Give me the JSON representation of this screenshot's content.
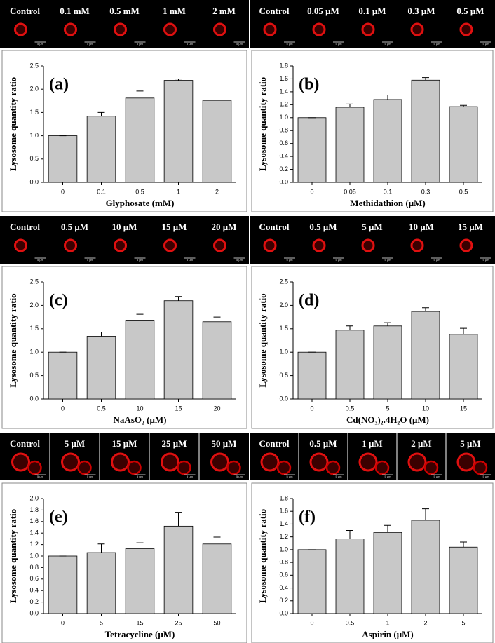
{
  "chart_data": [
    {
      "type": "bar",
      "panel_label": "(a)",
      "strip_labels": [
        "Control",
        "0.1 mM",
        "0.5 mM",
        "1 mM",
        "2 mM"
      ],
      "scale_bar_label": "5 μm",
      "x_label": "Glyphosate (mM)",
      "y_label": "Lysosome quantity ratio",
      "categories": [
        "0",
        "0.1",
        "0.5",
        "1",
        "2"
      ],
      "values": [
        1.0,
        1.42,
        1.81,
        2.19,
        1.76
      ],
      "errors": [
        0,
        0.08,
        0.15,
        0.03,
        0.07
      ],
      "color": "#c8c8c8",
      "ylim": [
        0,
        2.5
      ],
      "yticks": [
        {
          "value": 0,
          "label": "0.0"
        },
        {
          "value": 0.5,
          "label": "0.5"
        },
        {
          "value": 1,
          "label": "1.0"
        },
        {
          "value": 1.5,
          "label": "1.5"
        },
        {
          "value": 2,
          "label": "2.0"
        },
        {
          "value": 2.5,
          "label": "2.5"
        }
      ]
    },
    {
      "type": "bar",
      "panel_label": "(b)",
      "strip_labels": [
        "Control",
        "0.05 μM",
        "0.1 μM",
        "0.3 μM",
        "0.5 μM"
      ],
      "scale_bar_label": "5 μm",
      "x_label": "Methidathion (μM)",
      "y_label": "Lysosome quantity ratio",
      "categories": [
        "0",
        "0.05",
        "0.1",
        "0.3",
        "0.5"
      ],
      "values": [
        1.0,
        1.16,
        1.28,
        1.58,
        1.17
      ],
      "errors": [
        0,
        0.05,
        0.07,
        0.04,
        0.02
      ],
      "color": "#c8c8c8",
      "ylim": [
        0,
        1.8
      ],
      "yticks": [
        {
          "value": 0,
          "label": "0.0"
        },
        {
          "value": 0.2,
          "label": "0.2"
        },
        {
          "value": 0.4,
          "label": "0.4"
        },
        {
          "value": 0.6,
          "label": "0.6"
        },
        {
          "value": 0.8,
          "label": "0.8"
        },
        {
          "value": 1,
          "label": "1.0"
        },
        {
          "value": 1.2,
          "label": "1.2"
        },
        {
          "value": 1.4,
          "label": "1.4"
        },
        {
          "value": 1.6,
          "label": "1.6"
        },
        {
          "value": 1.8,
          "label": "1.8"
        }
      ]
    },
    {
      "type": "bar",
      "panel_label": "(c)",
      "strip_labels": [
        "Control",
        "0.5 μM",
        "10 μM",
        "15 μM",
        "20 μM"
      ],
      "scale_bar_label": "5 μm",
      "x_label": "NaAsO₂ (μM)",
      "y_label": "Lysosome quantity ratio",
      "categories": [
        "0",
        "0.5",
        "10",
        "15",
        "20"
      ],
      "values": [
        1.0,
        1.34,
        1.67,
        2.1,
        1.65
      ],
      "errors": [
        0,
        0.09,
        0.14,
        0.09,
        0.1
      ],
      "color": "#c8c8c8",
      "ylim": [
        0,
        2.5
      ],
      "yticks": [
        {
          "value": 0,
          "label": "0.0"
        },
        {
          "value": 0.5,
          "label": "0.5"
        },
        {
          "value": 1,
          "label": "1.0"
        },
        {
          "value": 1.5,
          "label": "1.5"
        },
        {
          "value": 2,
          "label": "2.0"
        },
        {
          "value": 2.5,
          "label": "2.5"
        }
      ]
    },
    {
      "type": "bar",
      "panel_label": "(d)",
      "strip_labels": [
        "Control",
        "0.5 μM",
        "5 μM",
        "10 μM",
        "15 μM"
      ],
      "scale_bar_label": "5 μm",
      "x_label": "Cd(NO₃)₂.4H₂O (μM)",
      "y_label": "Lysosome quantity ratio",
      "categories": [
        "0",
        "0.5",
        "5",
        "10",
        "15"
      ],
      "values": [
        1.0,
        1.47,
        1.56,
        1.87,
        1.38
      ],
      "errors": [
        0,
        0.09,
        0.07,
        0.08,
        0.13
      ],
      "color": "#c8c8c8",
      "ylim": [
        0,
        2.5
      ],
      "yticks": [
        {
          "value": 0,
          "label": "0.0"
        },
        {
          "value": 0.5,
          "label": "0.5"
        },
        {
          "value": 1,
          "label": "1.0"
        },
        {
          "value": 1.5,
          "label": "1.5"
        },
        {
          "value": 2,
          "label": "2.0"
        },
        {
          "value": 2.5,
          "label": "2.5"
        }
      ]
    },
    {
      "type": "bar",
      "panel_label": "(e)",
      "strip_labels": [
        "Control",
        "5 μM",
        "15 μM",
        "25 μM",
        "50 μM"
      ],
      "scale_bar_label": "5 μm",
      "x_label": "Tetracycline (μM)",
      "y_label": "Lysosome quantity ratio",
      "categories": [
        "0",
        "5",
        "15",
        "25",
        "50"
      ],
      "values": [
        1.0,
        1.06,
        1.13,
        1.52,
        1.21
      ],
      "errors": [
        0,
        0.15,
        0.1,
        0.24,
        0.12
      ],
      "color": "#c8c8c8",
      "ylim": [
        0,
        2
      ],
      "yticks": [
        {
          "value": 0,
          "label": "0.0"
        },
        {
          "value": 0.2,
          "label": "0.2"
        },
        {
          "value": 0.4,
          "label": "0.4"
        },
        {
          "value": 0.6,
          "label": "0.6"
        },
        {
          "value": 0.8,
          "label": "0.8"
        },
        {
          "value": 1,
          "label": "1.0"
        },
        {
          "value": 1.2,
          "label": "1.2"
        },
        {
          "value": 1.4,
          "label": "1.4"
        },
        {
          "value": 1.6,
          "label": "1.6"
        },
        {
          "value": 1.8,
          "label": "1.8"
        },
        {
          "value": 2,
          "label": "2.0"
        }
      ]
    },
    {
      "type": "bar",
      "panel_label": "(f)",
      "strip_labels": [
        "Control",
        "0.5 μM",
        "1 μM",
        "2 μM",
        "5 μM"
      ],
      "scale_bar_label": "5 μm",
      "x_label": "Aspirin (μM)",
      "y_label": "Lysosome quantity ratio",
      "categories": [
        "0",
        "0.5",
        "1",
        "2",
        "5"
      ],
      "values": [
        1.0,
        1.17,
        1.27,
        1.46,
        1.04
      ],
      "errors": [
        0,
        0.13,
        0.11,
        0.18,
        0.08
      ],
      "color": "#c8c8c8",
      "ylim": [
        0,
        1.8
      ],
      "yticks": [
        {
          "value": 0,
          "label": "0.0"
        },
        {
          "value": 0.2,
          "label": "0.2"
        },
        {
          "value": 0.4,
          "label": "0.4"
        },
        {
          "value": 0.6,
          "label": "0.6"
        },
        {
          "value": 0.8,
          "label": "0.8"
        },
        {
          "value": 1,
          "label": "1.0"
        },
        {
          "value": 1.2,
          "label": "1.2"
        },
        {
          "value": 1.4,
          "label": "1.4"
        },
        {
          "value": 1.6,
          "label": "1.6"
        },
        {
          "value": 1.8,
          "label": "1.8"
        }
      ]
    }
  ]
}
